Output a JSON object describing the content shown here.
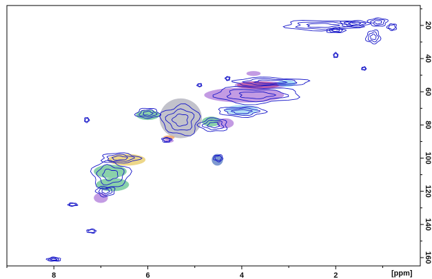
{
  "chart_data": {
    "type": "scatter",
    "subtype": "2D NMR contour spectrum (HSQC-like) with highlighted peak regions",
    "x_unit_label": "[ppm]",
    "y_unit_label": "[ppm]",
    "x_axis": {
      "direction": "reversed",
      "range": [
        9.0,
        0.2
      ],
      "ticks": [
        8,
        6,
        4,
        2
      ]
    },
    "y_axis": {
      "direction": "downward",
      "position": "right",
      "range": [
        8,
        165
      ],
      "ticks": [
        20,
        40,
        60,
        80,
        100,
        120,
        140,
        160
      ]
    },
    "grid": false,
    "legend": "none",
    "colors": {
      "contour": "#1414c8",
      "frame": "#000000",
      "regions": {
        "green": "#3cb371",
        "yellow": "#e3c24a",
        "purple": "#9b59d0",
        "gray": "#9a9aa8",
        "cyan": "#7ec8ef",
        "red": "#e0506a",
        "steelblue": "#5e7fc4",
        "orange": "#f0a060"
      }
    },
    "contour_peaks": [
      {
        "x": 2.3,
        "y": 20,
        "rx": 0.8,
        "ry": 3
      },
      {
        "x": 1.6,
        "y": 19,
        "rx": 0.3,
        "ry": 2
      },
      {
        "x": 1.1,
        "y": 18,
        "rx": 0.2,
        "ry": 2.5
      },
      {
        "x": 0.8,
        "y": 21,
        "rx": 0.1,
        "ry": 2
      },
      {
        "x": 1.2,
        "y": 27,
        "rx": 0.15,
        "ry": 4
      },
      {
        "x": 2.0,
        "y": 23,
        "rx": 0.2,
        "ry": 1.5
      },
      {
        "x": 3.4,
        "y": 54,
        "rx": 0.8,
        "ry": 2.5
      },
      {
        "x": 3.7,
        "y": 62,
        "rx": 0.9,
        "ry": 5
      },
      {
        "x": 4.0,
        "y": 72,
        "rx": 0.5,
        "ry": 3
      },
      {
        "x": 5.3,
        "y": 77,
        "rx": 0.4,
        "ry": 9
      },
      {
        "x": 4.6,
        "y": 80,
        "rx": 0.3,
        "ry": 4
      },
      {
        "x": 6.0,
        "y": 73,
        "rx": 0.25,
        "ry": 3
      },
      {
        "x": 6.6,
        "y": 100,
        "rx": 0.4,
        "ry": 3
      },
      {
        "x": 6.8,
        "y": 110,
        "rx": 0.4,
        "ry": 8
      },
      {
        "x": 6.9,
        "y": 120,
        "rx": 0.2,
        "ry": 3
      },
      {
        "x": 4.5,
        "y": 100,
        "rx": 0.1,
        "ry": 2
      },
      {
        "x": 7.2,
        "y": 144,
        "rx": 0.1,
        "ry": 1.2
      },
      {
        "x": 8.0,
        "y": 161,
        "rx": 0.15,
        "ry": 1.2
      },
      {
        "x": 7.6,
        "y": 128,
        "rx": 0.1,
        "ry": 1
      },
      {
        "x": 7.3,
        "y": 77,
        "rx": 0.05,
        "ry": 1.5
      },
      {
        "x": 5.6,
        "y": 89,
        "rx": 0.1,
        "ry": 1.5
      },
      {
        "x": 4.3,
        "y": 52,
        "rx": 0.05,
        "ry": 1.2
      },
      {
        "x": 4.9,
        "y": 56,
        "rx": 0.05,
        "ry": 1.0
      },
      {
        "x": 1.4,
        "y": 46,
        "rx": 0.05,
        "ry": 1.0
      },
      {
        "x": 2.0,
        "y": 38,
        "rx": 0.05,
        "ry": 1.5
      }
    ],
    "highlight_regions": [
      {
        "color": "gray",
        "x": 5.3,
        "y": 76,
        "rx": 0.45,
        "ry": 12,
        "opacity": 0.6
      },
      {
        "color": "green",
        "x": 6.0,
        "y": 74,
        "rx": 0.25,
        "ry": 3,
        "opacity": 0.6
      },
      {
        "color": "purple",
        "x": 3.95,
        "y": 62,
        "rx": 0.85,
        "ry": 4.5,
        "opacity": 0.6
      },
      {
        "color": "red",
        "x": 3.65,
        "y": 56,
        "rx": 0.45,
        "ry": 2.2,
        "opacity": 0.85
      },
      {
        "color": "purple",
        "x": 3.6,
        "y": 56,
        "rx": 0.55,
        "ry": 2.5,
        "opacity": 0.55
      },
      {
        "color": "cyan",
        "x": 3.05,
        "y": 55,
        "rx": 0.2,
        "ry": 2.0,
        "opacity": 0.7
      },
      {
        "color": "purple",
        "x": 3.75,
        "y": 49,
        "rx": 0.15,
        "ry": 1.5,
        "opacity": 0.6
      },
      {
        "color": "cyan",
        "x": 4.0,
        "y": 71,
        "rx": 0.35,
        "ry": 3,
        "opacity": 0.6
      },
      {
        "color": "green",
        "x": 4.65,
        "y": 78,
        "rx": 0.2,
        "ry": 3,
        "opacity": 0.6
      },
      {
        "color": "purple",
        "x": 4.35,
        "y": 79,
        "rx": 0.18,
        "ry": 3,
        "opacity": 0.6
      },
      {
        "color": "steelblue",
        "x": 4.52,
        "y": 101,
        "rx": 0.12,
        "ry": 3.5,
        "opacity": 0.8
      },
      {
        "color": "orange",
        "x": 5.55,
        "y": 87.5,
        "rx": 0.12,
        "ry": 1.2,
        "opacity": 0.8
      },
      {
        "color": "purple",
        "x": 5.55,
        "y": 89.5,
        "rx": 0.1,
        "ry": 1.2,
        "opacity": 0.6
      },
      {
        "color": "yellow",
        "x": 6.45,
        "y": 101,
        "rx": 0.4,
        "ry": 3.5,
        "opacity": 0.65
      },
      {
        "color": "green",
        "x": 6.8,
        "y": 108,
        "rx": 0.35,
        "ry": 4,
        "opacity": 0.6
      },
      {
        "color": "green",
        "x": 6.75,
        "y": 116,
        "rx": 0.35,
        "ry": 4,
        "opacity": 0.6
      },
      {
        "color": "purple",
        "x": 7.0,
        "y": 124,
        "rx": 0.15,
        "ry": 3,
        "opacity": 0.6
      }
    ]
  }
}
